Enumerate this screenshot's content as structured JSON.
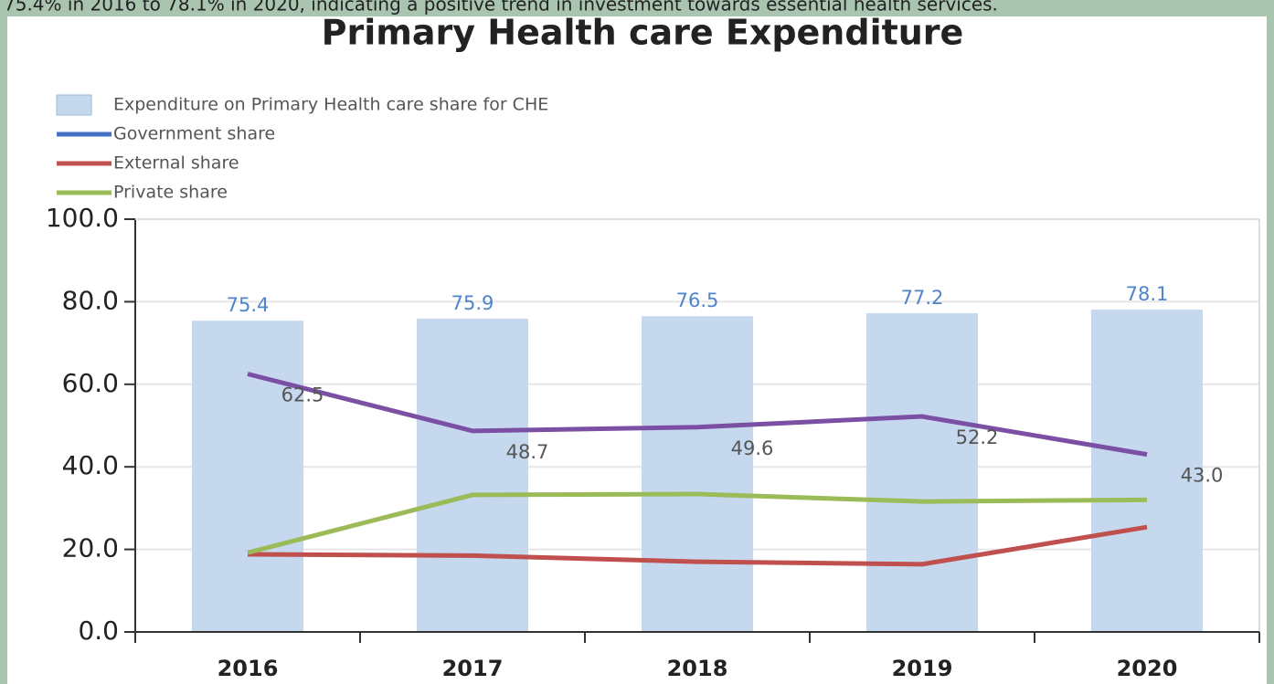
{
  "caption": "75.4% in 2016 to 78.1% in 2020, indicating a positive trend in investment towards essential health services.",
  "chart_data": {
    "type": "bar_line",
    "title": "Primary Health care Expenditure",
    "categories": [
      "2016",
      "2017",
      "2018",
      "2019",
      "2020"
    ],
    "bars": {
      "name": "Expenditure on Primary Health care share for CHE",
      "color": "#c5d8ee",
      "label_color": "#4f84cc",
      "values": [
        75.4,
        75.9,
        76.5,
        77.2,
        78.1
      ]
    },
    "series": [
      {
        "name": "Government share",
        "color": "#7b4fa3",
        "legend_color": "#4472c4",
        "values": [
          62.5,
          48.7,
          49.6,
          52.2,
          43.0
        ],
        "value_labels": [
          "62.5",
          "48.7",
          "49.6",
          "52.2",
          "43.0"
        ]
      },
      {
        "name": "External share",
        "color": "#c0504d",
        "values": [
          18.8,
          18.5,
          17.0,
          16.4,
          25.4
        ]
      },
      {
        "name": "Private share",
        "color": "#9bbb59",
        "values": [
          19.2,
          33.2,
          33.4,
          31.6,
          32.0
        ]
      }
    ],
    "ylim": [
      0,
      100
    ],
    "yticks": [
      {
        "value": 0,
        "label": "0.0"
      },
      {
        "value": 20,
        "label": "20.0"
      },
      {
        "value": 40,
        "label": "40.0"
      },
      {
        "value": 60,
        "label": "60.0"
      },
      {
        "value": 80,
        "label": "80.0"
      },
      {
        "value": 100,
        "label": "100.0"
      }
    ],
    "grid": true,
    "legend": "top-left"
  }
}
